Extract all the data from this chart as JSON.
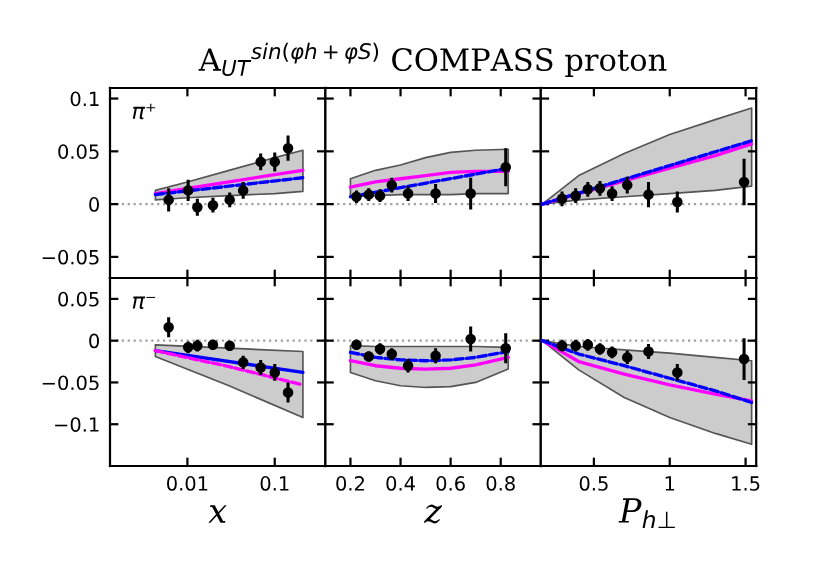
{
  "chart_data": [
    {
      "type": "scatter",
      "title": "A$_{UT}$$^{sin(φh+φS)}$ COMPASS proton",
      "annotations": [
        "π⁺"
      ],
      "log": "x",
      "xlim": [
        0.0013,
        0.38
      ],
      "xticks": [
        0.01,
        0.1
      ],
      "ylim": [
        -0.07,
        0.11
      ],
      "yticks": [
        {
          "value": -0.05,
          "label": "−0.05"
        },
        0,
        0.05,
        0.1
      ],
      "tick_labels": "y",
      "grid": false,
      "marker": "circle",
      "ref_lines": [
        {
          "axis": "y",
          "value": 0,
          "color": "#a0a0a0",
          "line_style": "dotted"
        }
      ],
      "series": [
        {
          "type": "line",
          "marker": "none",
          "color": "#ff00ff",
          "line_style": "solid",
          "x": [
            0.0043,
            0.01,
            0.03,
            0.1,
            0.21
          ],
          "values": [
            0.01,
            0.015,
            0.021,
            0.028,
            0.032
          ],
          "lower": [
            0.004,
            0.006,
            0.008,
            0.01,
            0.012
          ],
          "upper": [
            0.013,
            0.021,
            0.032,
            0.044,
            0.051
          ]
        },
        {
          "type": "line",
          "marker": "none",
          "color": "#0000ff",
          "line_style": "dashed",
          "x": [
            0.0043,
            0.21
          ],
          "values": [
            0.009,
            0.025
          ]
        },
        {
          "color": "#000000",
          "x": [
            0.0061,
            0.0102,
            0.013,
            0.0196,
            0.0305,
            0.0435,
            0.069,
            0.1,
            0.142
          ],
          "values": [
            0.004,
            0.013,
            -0.003,
            -0.001,
            0.004,
            0.013,
            0.04,
            0.04,
            0.053
          ],
          "errors": [
            0.011,
            0.01,
            0.008,
            0.007,
            0.007,
            0.008,
            0.008,
            0.009,
            0.012
          ]
        }
      ]
    },
    {
      "type": "scatter",
      "xlim": [
        0.1,
        0.96
      ],
      "xticks": [
        0.2,
        0.4,
        0.6,
        0.8
      ],
      "ylim": [
        -0.07,
        0.11
      ],
      "yticks": [
        {
          "value": -0.05,
          "label": null
        },
        {
          "value": 0,
          "label": null
        },
        {
          "value": 0.05,
          "label": null
        },
        {
          "value": 0.1,
          "label": null
        }
      ],
      "tick_labels": false,
      "grid": false,
      "marker": "circle",
      "ref_lines": [
        {
          "axis": "y",
          "value": 0,
          "color": "#a0a0a0",
          "line_style": "dotted"
        }
      ],
      "series": [
        {
          "type": "line",
          "marker": "none",
          "color": "#ff00ff",
          "line_style": "solid",
          "x": [
            0.2,
            0.3,
            0.4,
            0.5,
            0.6,
            0.7,
            0.83
          ],
          "values": [
            0.016,
            0.021,
            0.024,
            0.027,
            0.03,
            0.031,
            0.031
          ],
          "lower": [
            0.007,
            0.008,
            0.009,
            0.009,
            0.009,
            0.01,
            0.01
          ],
          "upper": [
            0.024,
            0.032,
            0.037,
            0.044,
            0.049,
            0.051,
            0.052
          ]
        },
        {
          "type": "line",
          "marker": "none",
          "color": "#0000ff",
          "line_style": "dashed",
          "x": [
            0.2,
            0.83
          ],
          "values": [
            0.007,
            0.034
          ]
        },
        {
          "color": "#000000",
          "x": [
            0.224,
            0.273,
            0.318,
            0.365,
            0.43,
            0.54,
            0.68,
            0.82
          ],
          "values": [
            0.007,
            0.009,
            0.008,
            0.018,
            0.01,
            0.01,
            0.01,
            0.035
          ],
          "errors": [
            0.006,
            0.006,
            0.006,
            0.007,
            0.007,
            0.009,
            0.015,
            0.018
          ]
        }
      ]
    },
    {
      "type": "scatter",
      "xlim": [
        0.15,
        1.57
      ],
      "xticks": [
        0.5,
        1,
        1.5
      ],
      "ylim": [
        -0.07,
        0.11
      ],
      "yticks": [
        {
          "value": -0.05,
          "label": null
        },
        {
          "value": 0,
          "label": null
        },
        {
          "value": 0.05,
          "label": null
        },
        {
          "value": 0.1,
          "label": null
        }
      ],
      "tick_labels": false,
      "grid": false,
      "marker": "circle",
      "ref_lines": [
        {
          "axis": "y",
          "value": 0,
          "color": "#a0a0a0",
          "line_style": "dotted"
        }
      ],
      "series": [
        {
          "type": "line",
          "marker": "none",
          "color": "#ff00ff",
          "line_style": "solid",
          "x": [
            0.16,
            0.4,
            0.7,
            1.0,
            1.3,
            1.54
          ],
          "values": [
            0,
            0.01,
            0.022,
            0.034,
            0.046,
            0.057
          ],
          "lower": [
            0,
            0.004,
            0.007,
            0.01,
            0.013,
            0.017
          ],
          "upper": [
            0,
            0.027,
            0.048,
            0.066,
            0.08,
            0.091
          ]
        },
        {
          "type": "line",
          "marker": "none",
          "color": "#0000ff",
          "line_style": "dashed",
          "x": [
            0.16,
            1.54
          ],
          "values": [
            0,
            0.06
          ]
        },
        {
          "color": "#000000",
          "x": [
            0.29,
            0.38,
            0.46,
            0.54,
            0.62,
            0.72,
            0.86,
            1.05,
            1.49
          ],
          "values": [
            0.005,
            0.008,
            0.014,
            0.015,
            0.01,
            0.018,
            0.009,
            0.002,
            0.021
          ],
          "errors": [
            0.007,
            0.007,
            0.007,
            0.007,
            0.007,
            0.008,
            0.012,
            0.01,
            0.022
          ]
        }
      ]
    },
    {
      "type": "scatter",
      "annotations": [
        "π⁻"
      ],
      "log": "x",
      "xlim": [
        0.0013,
        0.38
      ],
      "xticks": [
        0.01,
        0.1
      ],
      "ylim": [
        -0.15,
        0.075
      ],
      "yticks": [
        {
          "value": -0.1,
          "label": "−0.1"
        },
        {
          "value": -0.05,
          "label": "−0.05"
        },
        0,
        0.05
      ],
      "xlabel": "x",
      "grid": false,
      "marker": "circle",
      "ref_lines": [
        {
          "axis": "y",
          "value": 0,
          "color": "#a0a0a0",
          "line_style": "dotted"
        }
      ],
      "series": [
        {
          "type": "line",
          "marker": "none",
          "color": "#ff00ff",
          "line_style": "dashed",
          "x": [
            0.0043,
            0.03,
            0.21
          ],
          "values": [
            -0.012,
            -0.031,
            -0.053
          ],
          "lower": [
            -0.019,
            -0.054,
            -0.092
          ],
          "upper": [
            -0.005,
            -0.009,
            -0.013
          ]
        },
        {
          "type": "line",
          "marker": "none",
          "color": "#0000ff",
          "line_style": "solid",
          "x": [
            0.0043,
            0.21
          ],
          "values": [
            -0.012,
            -0.038
          ]
        },
        {
          "color": "#000000",
          "x": [
            0.0061,
            0.0102,
            0.013,
            0.0196,
            0.0305,
            0.0435,
            0.069,
            0.1,
            0.142
          ],
          "values": [
            0.016,
            -0.008,
            -0.006,
            -0.005,
            -0.006,
            -0.026,
            -0.032,
            -0.038,
            -0.062
          ],
          "errors": [
            0.012,
            0.007,
            0.007,
            0.006,
            0.006,
            0.008,
            0.009,
            0.01,
            0.012
          ]
        }
      ]
    },
    {
      "type": "scatter",
      "xlim": [
        0.1,
        0.96
      ],
      "xticks": [
        0.2,
        0.4,
        0.6,
        0.8
      ],
      "ylim": [
        -0.15,
        0.075
      ],
      "yticks": [
        {
          "value": -0.1,
          "label": null
        },
        {
          "value": -0.05,
          "label": null
        },
        {
          "value": 0,
          "label": null
        },
        {
          "value": 0.05,
          "label": null
        }
      ],
      "xlabel": "z",
      "tick_labels": "x",
      "grid": false,
      "marker": "circle",
      "ref_lines": [
        {
          "axis": "y",
          "value": 0,
          "color": "#a0a0a0",
          "line_style": "dotted"
        }
      ],
      "series": [
        {
          "type": "line",
          "marker": "none",
          "color": "#ff00ff",
          "line_style": "solid",
          "x": [
            0.2,
            0.3,
            0.4,
            0.5,
            0.6,
            0.7,
            0.83
          ],
          "values": [
            -0.024,
            -0.03,
            -0.033,
            -0.034,
            -0.033,
            -0.029,
            -0.02
          ],
          "lower": [
            -0.038,
            -0.048,
            -0.054,
            -0.056,
            -0.055,
            -0.05,
            -0.034
          ],
          "upper": [
            -0.006,
            -0.007,
            -0.007,
            -0.007,
            -0.007,
            -0.007,
            -0.008
          ]
        },
        {
          "type": "line",
          "marker": "none",
          "color": "#0000ff",
          "line_style": "dashed",
          "x": [
            0.2,
            0.3,
            0.4,
            0.5,
            0.6,
            0.7,
            0.83
          ],
          "values": [
            -0.014,
            -0.02,
            -0.023,
            -0.024,
            -0.023,
            -0.02,
            -0.013
          ]
        },
        {
          "color": "#000000",
          "x": [
            0.224,
            0.273,
            0.318,
            0.365,
            0.43,
            0.54,
            0.68,
            0.82
          ],
          "values": [
            -0.005,
            -0.019,
            -0.01,
            -0.016,
            -0.03,
            -0.018,
            0.002,
            -0.009
          ],
          "errors": [
            0.006,
            0.006,
            0.007,
            0.007,
            0.008,
            0.009,
            0.015,
            0.018
          ]
        }
      ]
    },
    {
      "type": "scatter",
      "xlim": [
        0.15,
        1.57
      ],
      "xticks": [
        0.5,
        1,
        1.5
      ],
      "ylim": [
        -0.15,
        0.075
      ],
      "yticks": [
        {
          "value": -0.1,
          "label": null
        },
        {
          "value": -0.05,
          "label": null
        },
        {
          "value": 0,
          "label": null
        },
        {
          "value": 0.05,
          "label": null
        }
      ],
      "xlabel": "P$_{h⊥}$",
      "tick_labels": "x",
      "grid": false,
      "marker": "circle",
      "ref_lines": [
        {
          "axis": "y",
          "value": 0,
          "color": "#a0a0a0",
          "line_style": "dotted"
        }
      ],
      "series": [
        {
          "type": "line",
          "marker": "none",
          "color": "#ff00ff",
          "line_style": "solid",
          "x": [
            0.16,
            0.4,
            0.7,
            1.0,
            1.3,
            1.54
          ],
          "values": [
            0,
            -0.025,
            -0.04,
            -0.053,
            -0.064,
            -0.072
          ],
          "lower": [
            0,
            -0.035,
            -0.068,
            -0.092,
            -0.111,
            -0.124
          ],
          "upper": [
            0,
            -0.007,
            -0.011,
            -0.015,
            -0.02,
            -0.024
          ]
        },
        {
          "type": "line",
          "marker": "none",
          "color": "#0000ff",
          "line_style": "dashed",
          "x": [
            0.16,
            0.4,
            0.7,
            1.0,
            1.3,
            1.54
          ],
          "values": [
            0,
            -0.016,
            -0.03,
            -0.045,
            -0.06,
            -0.074
          ]
        },
        {
          "color": "#000000",
          "x": [
            0.29,
            0.38,
            0.46,
            0.54,
            0.62,
            0.72,
            0.86,
            1.05,
            1.49
          ],
          "values": [
            -0.006,
            -0.006,
            -0.005,
            -0.01,
            -0.014,
            -0.02,
            -0.013,
            -0.038,
            -0.022
          ],
          "errors": [
            0.007,
            0.007,
            0.007,
            0.007,
            0.007,
            0.008,
            0.009,
            0.01,
            0.025
          ]
        }
      ]
    }
  ]
}
